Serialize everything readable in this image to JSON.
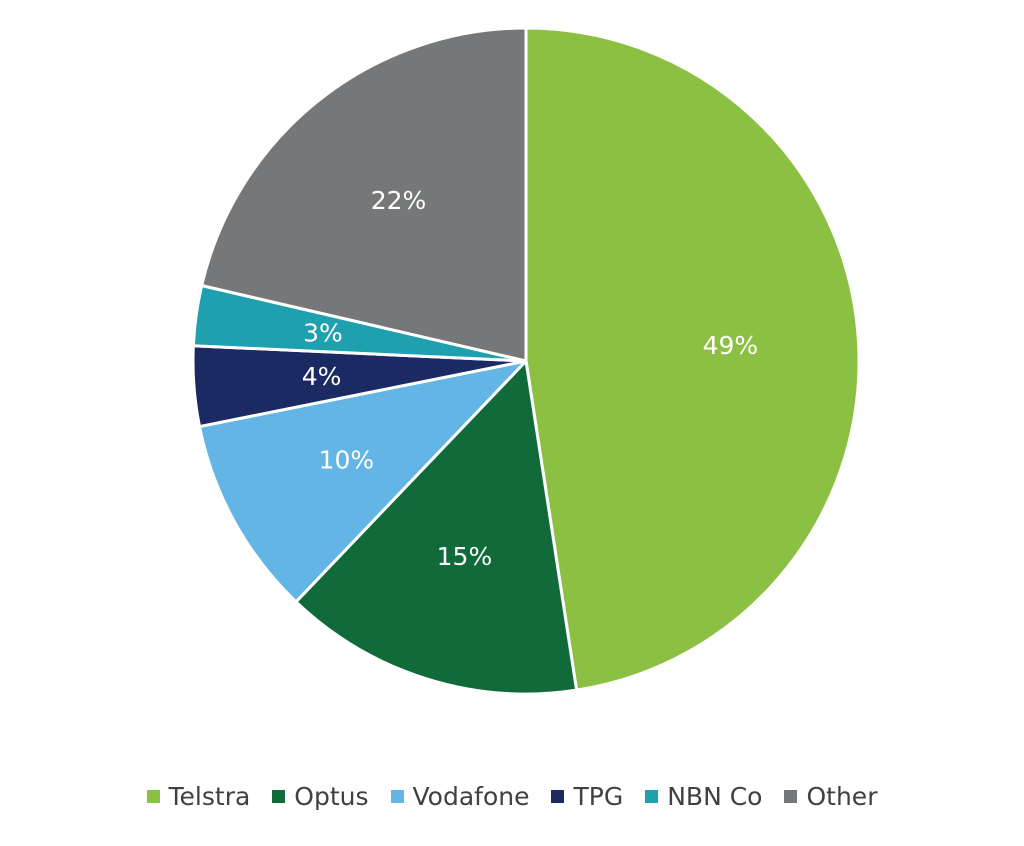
{
  "chart_data": {
    "type": "pie",
    "title": "",
    "legend_position": "bottom",
    "start_angle_deg": 0,
    "direction": "clockwise",
    "slices": [
      {
        "name": "Telstra",
        "value": 49,
        "label": "49%",
        "color": "#8cc043"
      },
      {
        "name": "Optus",
        "value": 15,
        "label": "15%",
        "color": "#116a3a"
      },
      {
        "name": "Vodafone",
        "value": 10,
        "label": "10%",
        "color": "#63b5e6"
      },
      {
        "name": "TPG",
        "value": 4,
        "label": "4%",
        "color": "#1c2a64"
      },
      {
        "name": "NBN Co",
        "value": 3,
        "label": "3%",
        "color": "#1ea0ae"
      },
      {
        "name": "Other",
        "value": 22,
        "label": "22%",
        "color": "#767778"
      }
    ]
  }
}
